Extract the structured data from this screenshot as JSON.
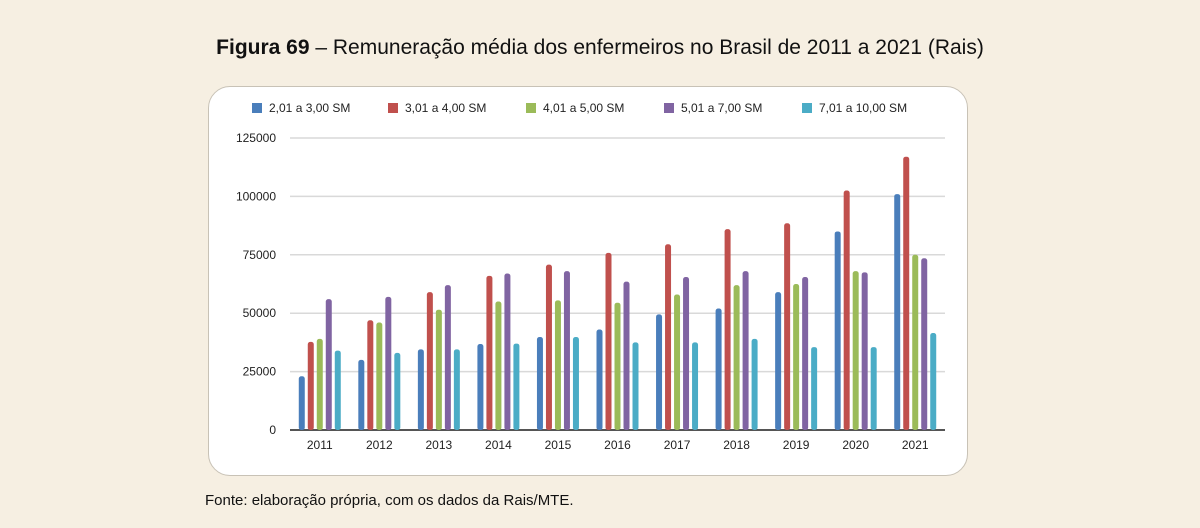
{
  "title_bold": "Figura 69",
  "title_rest": " – Remuneração média dos enfermeiros no Brasil de 2011 a 2021 (Rais)",
  "source": "Fonte: elaboração própria, com os dados da Rais/MTE.",
  "chart_data": {
    "type": "bar",
    "title": "Remuneração média dos enfermeiros no Brasil de 2011 a 2021 (Rais)",
    "xlabel": "",
    "ylabel": "",
    "ylim": [
      0,
      125000
    ],
    "yticks": [
      0,
      25000,
      50000,
      75000,
      100000,
      125000
    ],
    "grid": true,
    "legend_position": "top",
    "categories": [
      "2011",
      "2012",
      "2013",
      "2014",
      "2015",
      "2016",
      "2017",
      "2018",
      "2019",
      "2020",
      "2021"
    ],
    "series": [
      {
        "name": "2,01 a 3,00 SM",
        "color": "#4a7ebb",
        "values": [
          23000,
          30000,
          34500,
          36800,
          39800,
          43000,
          49500,
          52000,
          59000,
          85000,
          101000
        ]
      },
      {
        "name": "3,01 a 4,00 SM",
        "color": "#c0504d",
        "values": [
          37700,
          47000,
          59000,
          66000,
          70800,
          75800,
          79500,
          86000,
          88500,
          102500,
          117000
        ]
      },
      {
        "name": "4,01 a 5,00 SM",
        "color": "#9bbb59",
        "values": [
          39000,
          46000,
          51500,
          55000,
          55500,
          54500,
          58000,
          62000,
          62500,
          68000,
          75000
        ]
      },
      {
        "name": "5,01 a 7,00 SM",
        "color": "#8064a2",
        "values": [
          56000,
          57000,
          62000,
          67000,
          68000,
          63500,
          65500,
          68000,
          65500,
          67500,
          73500
        ]
      },
      {
        "name": "7,01 a 10,00 SM",
        "color": "#4bacc6",
        "values": [
          34000,
          33000,
          34500,
          37000,
          39800,
          37500,
          37500,
          39000,
          35500,
          35500,
          41500
        ]
      }
    ]
  }
}
